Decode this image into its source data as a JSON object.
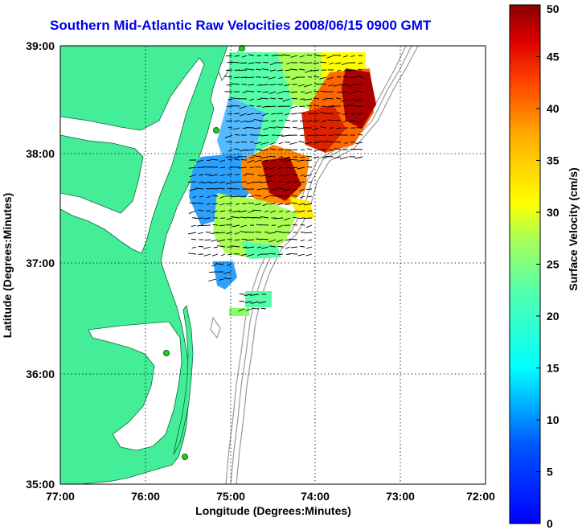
{
  "title": "Southern Mid-Atlantic Raw Velocities 2008/06/15 0900 GMT",
  "xlabel": "Longitude (Degrees:Minutes)",
  "ylabel": "Latitude (Degrees:Minutes)",
  "colorbar_label": "Surface Velocity (cm/s)",
  "x_ticks": [
    "77:00",
    "76:00",
    "75:00",
    "74:00",
    "73:00",
    "72:00"
  ],
  "y_ticks": [
    "39:00",
    "38:00",
    "37:00",
    "36:00",
    "35:00"
  ],
  "colorbar_ticks": [
    "0",
    "5",
    "10",
    "15",
    "20",
    "25",
    "30",
    "35",
    "40",
    "45",
    "50"
  ],
  "colors": {
    "land": "#44ee99",
    "title": "#0000ee",
    "bathymetry": "#999999",
    "grid": "#000000",
    "station": "#22cc22"
  },
  "chart_data": {
    "type": "map",
    "title": "Southern Mid-Atlantic Raw Velocities 2008/06/15 0900 GMT",
    "xlabel": "Longitude (Degrees:Minutes)",
    "ylabel": "Latitude (Degrees:Minutes)",
    "xlim": [
      -77,
      -72
    ],
    "ylim": [
      35,
      39
    ],
    "grid": true,
    "colorbar": {
      "label": "Surface Velocity (cm/s)",
      "range": [
        0,
        50
      ],
      "colormap": "jet"
    },
    "stations": [
      {
        "lon": -74.9,
        "lat": 39.0
      },
      {
        "lon": -75.15,
        "lat": 38.22
      },
      {
        "lon": -75.25,
        "lat": 36.18
      },
      {
        "lon": -75.05,
        "lat": 35.25
      }
    ],
    "velocity_field": [
      {
        "lon": -75.0,
        "lat": 38.8,
        "speed": 15
      },
      {
        "lon": -74.5,
        "lat": 38.8,
        "speed": 25
      },
      {
        "lon": -74.0,
        "lat": 38.8,
        "speed": 30
      },
      {
        "lon": -73.6,
        "lat": 38.7,
        "speed": 47
      },
      {
        "lon": -73.9,
        "lat": 38.3,
        "speed": 42
      },
      {
        "lon": -74.6,
        "lat": 38.3,
        "speed": 20
      },
      {
        "lon": -75.0,
        "lat": 38.4,
        "speed": 8
      },
      {
        "lon": -75.4,
        "lat": 37.9,
        "speed": 8
      },
      {
        "lon": -74.4,
        "lat": 37.8,
        "speed": 48
      },
      {
        "lon": -74.8,
        "lat": 37.8,
        "speed": 33
      },
      {
        "lon": -75.1,
        "lat": 37.5,
        "speed": 17
      },
      {
        "lon": -74.6,
        "lat": 37.3,
        "speed": 19
      },
      {
        "lon": -74.2,
        "lat": 37.5,
        "speed": 22
      },
      {
        "lon": -75.0,
        "lat": 36.9,
        "speed": 7
      },
      {
        "lon": -74.6,
        "lat": 36.7,
        "speed": 16
      }
    ]
  }
}
